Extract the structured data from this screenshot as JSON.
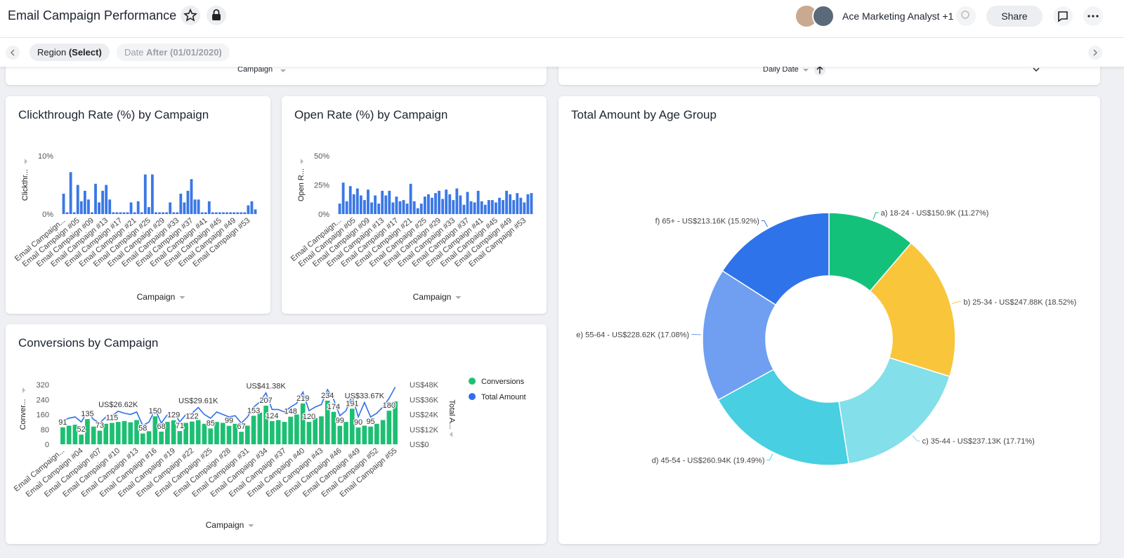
{
  "header": {
    "title": "Email Campaign Performance",
    "users": "Ace Marketing Analyst +1",
    "share": "Share"
  },
  "filters": [
    {
      "name": "Region",
      "value": "(Select)"
    },
    {
      "name": "Date",
      "value": "After (01/01/2020)"
    }
  ],
  "top_panels": [
    {
      "x_label": "Campaign"
    },
    {
      "x_label": "Daily Date"
    }
  ],
  "chart_data": [
    {
      "type": "bar",
      "title": "Clickthrough Rate (%) by Campaign",
      "y_label": "Clickthr...",
      "x_label": "Campaign",
      "color": "#3a78e6",
      "categories": [
        "Email Campaign...",
        null,
        null,
        null,
        "Email Campaign #05",
        null,
        null,
        null,
        "Email Campaign #09",
        null,
        null,
        null,
        "Email Campaign #13",
        null,
        null,
        null,
        "Email Campaign #17",
        null,
        null,
        null,
        "Email Campaign #21",
        null,
        null,
        null,
        "Email Campaign #25",
        null,
        null,
        null,
        "Email Campaign #29",
        null,
        null,
        null,
        "Email Campaign #33",
        null,
        null,
        null,
        "Email Campaign #37",
        null,
        null,
        null,
        "Email Campaign #41",
        null,
        null,
        null,
        "Email Campaign #45",
        null,
        null,
        null,
        "Email Campaign #49",
        null,
        null,
        null,
        "Email Campaign #53",
        null,
        null
      ],
      "values": [
        3.5,
        0.3,
        7.2,
        0.3,
        5,
        2.2,
        4,
        2.5,
        0.3,
        5.2,
        2,
        4,
        5,
        2.5,
        0.3,
        0.3,
        0.3,
        0.3,
        0.3,
        2,
        0.3,
        2.2,
        0.3,
        6.8,
        1.2,
        6.8,
        0.3,
        0.3,
        0.3,
        0.3,
        2,
        0.3,
        0.3,
        3.5,
        2,
        4,
        6,
        2.5,
        2.5,
        0.3,
        0.3,
        2.2,
        0.3,
        0.3,
        0.3,
        0.3,
        0.3,
        0.3,
        0.3,
        0.3,
        0.3,
        0.3,
        1.5,
        2.2,
        0.8
      ],
      "ylim": [
        0,
        10
      ],
      "yticks": [
        {
          "value": 0,
          "label": "0%"
        },
        {
          "value": 10,
          "label": "10%"
        }
      ]
    },
    {
      "type": "bar",
      "title": "Open Rate (%) by Campaign",
      "y_label": "Open R...",
      "x_label": "Campaign",
      "color": "#3a78e6",
      "categories": [
        "Email Campaign...",
        null,
        null,
        null,
        "Email Campaign #05",
        null,
        null,
        null,
        "Email Campaign #09",
        null,
        null,
        null,
        "Email Campaign #13",
        null,
        null,
        null,
        "Email Campaign #17",
        null,
        null,
        null,
        "Email Campaign #21",
        null,
        null,
        null,
        "Email Campaign #25",
        null,
        null,
        null,
        "Email Campaign #29",
        null,
        null,
        null,
        "Email Campaign #33",
        null,
        null,
        null,
        "Email Campaign #37",
        null,
        null,
        null,
        "Email Campaign #41",
        null,
        null,
        null,
        "Email Campaign #45",
        null,
        null,
        null,
        "Email Campaign #49",
        null,
        null,
        null,
        "Email Campaign #53",
        null,
        null
      ],
      "values": [
        9,
        27,
        11,
        24,
        17,
        22,
        16,
        12,
        21,
        10,
        16,
        9,
        20,
        16,
        20,
        10,
        15,
        11,
        12,
        9,
        26,
        11,
        5,
        9,
        15,
        17,
        14,
        18,
        20,
        13,
        21,
        17,
        12,
        22,
        16,
        8,
        19,
        11,
        10,
        20,
        11,
        8,
        12,
        12,
        10,
        14,
        12,
        20,
        17,
        12,
        18,
        14,
        10,
        17,
        18
      ],
      "ylim": [
        0,
        50
      ],
      "yticks": [
        {
          "value": 0,
          "label": "0%"
        },
        {
          "value": 25,
          "label": "25%"
        },
        {
          "value": 50,
          "label": "50%"
        }
      ]
    },
    {
      "type": "combo",
      "title": "Conversions by Campaign",
      "y_label": "Conver...",
      "y2_label": "Total A...",
      "x_label": "Campaign",
      "legend": "right",
      "categories": [
        "Email Campaign...",
        null,
        null,
        "Email Campaign #04",
        null,
        null,
        "Email Campaign #07",
        null,
        null,
        "Email Campaign #10",
        null,
        null,
        "Email Campaign #13",
        null,
        null,
        "Email Campaign #16",
        null,
        null,
        "Email Campaign #19",
        null,
        null,
        "Email Campaign #22",
        null,
        null,
        "Email Campaign #25",
        null,
        null,
        "Email Campaign #28",
        null,
        null,
        "Email Campaign #31",
        null,
        null,
        "Email Campaign #34",
        null,
        null,
        "Email Campaign #37",
        null,
        null,
        "Email Campaign #40",
        null,
        null,
        "Email Campaign #43",
        null,
        null,
        "Email Campaign #46",
        null,
        null,
        "Email Campaign #49",
        null,
        null,
        "Email Campaign #52",
        null,
        null,
        "Email Campaign #55"
      ],
      "series": [
        {
          "name": "Conversions",
          "type": "bar",
          "color": "#1dbf73",
          "values": [
            91,
            100,
            105,
            52,
            135,
            95,
            73,
            110,
            115,
            120,
            125,
            118,
            130,
            58,
            70,
            150,
            68,
            120,
            129,
            71,
            115,
            122,
            130,
            110,
            85,
            120,
            115,
            99,
            110,
            67,
            100,
            153,
            170,
            207,
            124,
            130,
            120,
            148,
            160,
            219,
            120,
            140,
            150,
            234,
            174,
            99,
            120,
            191,
            90,
            100,
            95,
            110,
            130,
            180,
            230
          ],
          "value_labels": [
            "91",
            null,
            null,
            "52",
            "135",
            null,
            "73",
            null,
            "115",
            null,
            null,
            null,
            null,
            "58",
            null,
            "150",
            "68",
            null,
            "129",
            "71",
            null,
            "122",
            null,
            null,
            "85",
            null,
            null,
            "99",
            null,
            "67",
            null,
            "153",
            null,
            "207",
            "124",
            null,
            null,
            "148",
            null,
            "219",
            "120",
            null,
            null,
            "234",
            "174",
            "99",
            null,
            "191",
            "90",
            null,
            "95",
            null,
            null,
            "180",
            null
          ]
        },
        {
          "name": "Total Amount",
          "type": "line",
          "axis": "y2",
          "color": "#2f6fe8",
          "values": [
            19000,
            21000,
            22000,
            18000,
            26000,
            20000,
            17000,
            22000,
            23000,
            26620,
            25000,
            24000,
            26000,
            15000,
            18000,
            28000,
            17000,
            24000,
            26000,
            18000,
            24000,
            25000,
            29610,
            24000,
            21000,
            26000,
            24000,
            22000,
            23000,
            17000,
            22000,
            30000,
            34000,
            41380,
            28000,
            28000,
            26000,
            30000,
            33000,
            42000,
            27000,
            30000,
            32000,
            44000,
            36000,
            23000,
            27000,
            39000,
            22000,
            33670,
            22000,
            25000,
            30000,
            37000,
            46000
          ],
          "value_labels": [
            null,
            null,
            null,
            null,
            null,
            null,
            null,
            null,
            null,
            "US$26.62K",
            null,
            null,
            null,
            null,
            null,
            null,
            null,
            null,
            null,
            null,
            null,
            null,
            "US$29.61K",
            null,
            null,
            null,
            null,
            null,
            null,
            null,
            null,
            null,
            null,
            "US$41.38K",
            null,
            null,
            null,
            null,
            null,
            null,
            null,
            null,
            null,
            null,
            null,
            null,
            null,
            null,
            null,
            "US$33.67K",
            null,
            null,
            null,
            null,
            null
          ]
        }
      ],
      "ylim": [
        0,
        320
      ],
      "yticks": [
        0,
        80,
        160,
        240,
        320
      ],
      "y2lim": [
        0,
        48000
      ],
      "y2ticks": [
        {
          "value": 0,
          "label": "US$0"
        },
        {
          "value": 12000,
          "label": "US$12K"
        },
        {
          "value": 24000,
          "label": "US$24K"
        },
        {
          "value": 36000,
          "label": "US$36K"
        },
        {
          "value": 48000,
          "label": "US$48K"
        }
      ]
    },
    {
      "type": "pie",
      "donut": true,
      "title": "Total Amount by Age Group",
      "categories": [
        "a) 18-24 - US$150.9K (11.27%)",
        "b) 25-34 - US$247.88K (18.52%)",
        "c) 35-44 - US$237.13K (17.71%)",
        "d) 45-54 - US$260.94K (19.49%)",
        "e) 55-64 - US$228.62K (17.08%)",
        "f) 65+ - US$213.16K (15.92%)"
      ],
      "values": [
        150900,
        247880,
        237130,
        260940,
        228620,
        213160
      ],
      "colors": [
        "#14c17b",
        "#f9c53a",
        "#83dfe9",
        "#48cfe1",
        "#709ff1",
        "#2e73ea"
      ]
    }
  ]
}
